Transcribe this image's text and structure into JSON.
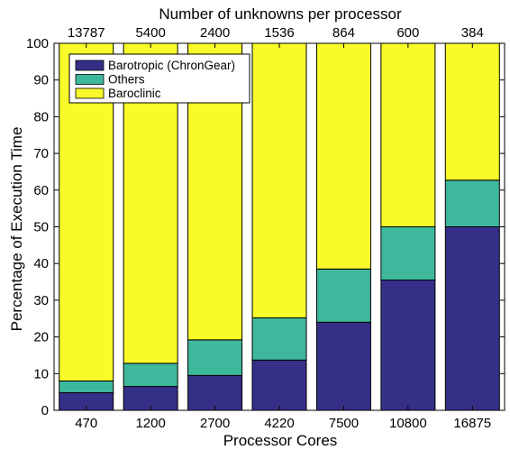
{
  "chart_data": {
    "type": "bar",
    "stacked": true,
    "xlabel": "Processor Cores",
    "ylabel": "Percentage of Execution Time",
    "top_axis_label": "Number of unknowns per processor",
    "categories": [
      "470",
      "1200",
      "2700",
      "4220",
      "7500",
      "10800",
      "16875"
    ],
    "top_categories": [
      "13787",
      "5400",
      "2400",
      "1536",
      "864",
      "600",
      "384"
    ],
    "ylim": [
      0,
      100
    ],
    "yticks": [
      "0",
      "10",
      "20",
      "30",
      "40",
      "50",
      "60",
      "70",
      "80",
      "90",
      "100"
    ],
    "grid": false,
    "legend_position": "top-left",
    "series": [
      {
        "name": "Barotropic (ChronGear)",
        "color": "#352f88",
        "values": [
          4.8,
          6.5,
          9.5,
          13.7,
          24.0,
          35.5,
          50.0
        ]
      },
      {
        "name": "Others",
        "color": "#3eb89c",
        "values": [
          3.2,
          6.3,
          9.7,
          11.5,
          14.5,
          14.5,
          12.7
        ]
      },
      {
        "name": "Baroclinic",
        "color": "#f9fa2a",
        "values": [
          92.0,
          87.2,
          80.8,
          74.8,
          61.5,
          50.0,
          37.3
        ]
      }
    ]
  }
}
